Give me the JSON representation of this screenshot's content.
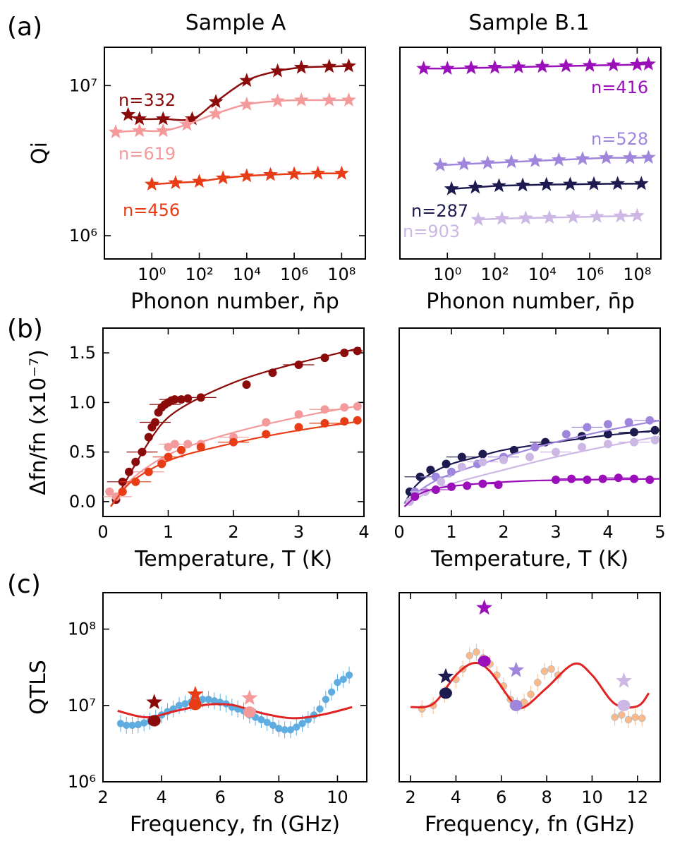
{
  "figure": {
    "column_titles": [
      "Sample A",
      "Sample B.1"
    ],
    "panel_letters": [
      "(a)",
      "(b)",
      "(c)"
    ]
  },
  "chart_data": [
    {
      "id": "a_left",
      "type": "line",
      "panel": "(a)",
      "column": "Sample A",
      "xlabel": "Phonon number, n̄p",
      "ylabel": "Qi",
      "xscale": "log",
      "yscale": "log",
      "xlim": [
        0.01,
        1000000000
      ],
      "ylim": [
        700000,
        18000000
      ],
      "xticks": [
        1,
        100,
        10000,
        1000000,
        100000000
      ],
      "xtick_labels": [
        "10⁰",
        "10²",
        "10⁴",
        "10⁶",
        "10⁸"
      ],
      "yticks": [
        1000000,
        10000000
      ],
      "ytick_labels": [
        "10⁶",
        "10⁷"
      ],
      "series": [
        {
          "name": "n=332",
          "color": "#8b0a0a",
          "marker": "star",
          "x": [
            0.1,
            0.3,
            3,
            50,
            500,
            10000,
            200000,
            2000000,
            30000000,
            200000000
          ],
          "y": [
            6400000,
            6000000,
            6000000,
            6000000,
            7800000,
            10800000,
            12500000,
            13200000,
            13400000,
            13500000
          ]
        },
        {
          "name": "n=619",
          "color": "#f49a9a",
          "marker": "star",
          "x": [
            0.03,
            0.3,
            3,
            30,
            500,
            10000,
            200000,
            2000000,
            30000000,
            200000000
          ],
          "y": [
            4900000,
            5000000,
            5000000,
            5500000,
            6500000,
            7500000,
            7900000,
            8000000,
            8000000,
            8000000
          ],
          "label": "n=619"
        },
        {
          "name": "n=456",
          "color": "#e83c17",
          "marker": "star",
          "x": [
            1,
            10,
            100,
            1000,
            10000,
            100000,
            1000000,
            10000000,
            100000000
          ],
          "y": [
            2200000,
            2250000,
            2300000,
            2420000,
            2500000,
            2550000,
            2580000,
            2600000,
            2600000
          ]
        }
      ],
      "fit": "smooth line through points"
    },
    {
      "id": "a_right",
      "type": "line",
      "panel": "(a)",
      "column": "Sample B.1",
      "xlabel": "Phonon number, n̄p",
      "ylabel": "",
      "xscale": "log",
      "yscale": "log",
      "xlim": [
        0.01,
        1000000000
      ],
      "ylim": [
        700000,
        18000000
      ],
      "xticks": [
        1,
        100,
        10000,
        1000000,
        100000000
      ],
      "xtick_labels": [
        "10⁰",
        "10²",
        "10⁴",
        "10⁶",
        "10⁸"
      ],
      "series": [
        {
          "name": "n=416",
          "color": "#9b0fbb",
          "marker": "star",
          "x": [
            0.1,
            1,
            10,
            100,
            1000,
            10000,
            100000,
            1000000,
            10000000,
            100000000,
            300000000
          ],
          "y": [
            13000000,
            13000000,
            13100000,
            13200000,
            13300000,
            13400000,
            13500000,
            13600000,
            13700000,
            13800000,
            13900000
          ]
        },
        {
          "name": "n=528",
          "color": "#9f86dc",
          "marker": "star",
          "x": [
            0.5,
            5,
            50,
            500,
            5000,
            50000,
            500000,
            5000000,
            50000000,
            300000000
          ],
          "y": [
            2950000,
            3000000,
            3050000,
            3100000,
            3150000,
            3200000,
            3250000,
            3300000,
            3300000,
            3320000
          ]
        },
        {
          "name": "n=287",
          "color": "#1c1a4f",
          "marker": "star",
          "x": [
            1.5,
            15,
            150,
            1500,
            15000,
            150000,
            1500000,
            15000000,
            150000000
          ],
          "y": [
            2050000,
            2100000,
            2150000,
            2170000,
            2190000,
            2200000,
            2210000,
            2220000,
            2220000
          ]
        },
        {
          "name": "n=903",
          "color": "#cdb7e4",
          "marker": "star",
          "x": [
            20,
            200,
            2000,
            20000,
            200000,
            2000000,
            20000000,
            100000000
          ],
          "y": [
            1280000,
            1300000,
            1310000,
            1320000,
            1330000,
            1340000,
            1350000,
            1360000
          ]
        }
      ],
      "fit": "smooth line through points"
    },
    {
      "id": "b_left",
      "type": "scatter",
      "panel": "(b)",
      "column": "Sample A",
      "xlabel": "Temperature, T (K)",
      "ylabel": "Δfn/fn (x10⁻⁷)",
      "xlim": [
        0,
        4
      ],
      "ylim": [
        -0.15,
        1.75
      ],
      "xticks": [
        0,
        1,
        2,
        3,
        4
      ],
      "xtick_labels": [
        "0",
        "1",
        "2",
        "3",
        "4"
      ],
      "yticks": [
        0,
        0.5,
        1.0,
        1.5
      ],
      "ytick_labels": [
        "0.0",
        "0.5",
        "1.0",
        "1.5"
      ],
      "series": [
        {
          "name": "n=332",
          "color": "#8b0a0a",
          "fit_x": [
            0.12,
            0.3,
            0.5,
            0.75,
            1.0,
            1.4,
            2.0,
            2.5,
            3.0,
            3.5,
            3.95
          ],
          "fit_y": [
            -0.05,
            0.15,
            0.38,
            0.65,
            0.85,
            1.02,
            1.2,
            1.31,
            1.4,
            1.48,
            1.55
          ],
          "points_x": [
            0.2,
            0.3,
            0.4,
            0.5,
            0.6,
            0.7,
            0.75,
            0.8,
            0.85,
            0.9,
            0.95,
            1.0,
            1.05,
            1.1,
            1.2,
            1.3,
            1.5,
            2.2,
            2.6,
            3.0,
            3.4,
            3.7,
            3.9
          ],
          "points_y": [
            0.02,
            0.2,
            0.3,
            0.4,
            0.5,
            0.65,
            0.75,
            0.8,
            0.9,
            0.95,
            0.98,
            1.0,
            1.02,
            1.03,
            1.03,
            1.04,
            1.05,
            1.18,
            1.3,
            1.38,
            1.45,
            1.5,
            1.52
          ]
        },
        {
          "name": "n=619",
          "color": "#f49a9a",
          "fit_x": [
            0.12,
            0.4,
            0.8,
            1.2,
            1.8,
            2.5,
            3.2,
            3.95
          ],
          "fit_y": [
            -0.05,
            0.2,
            0.4,
            0.53,
            0.66,
            0.78,
            0.88,
            0.97
          ],
          "points_x": [
            0.1,
            0.2,
            0.3,
            0.5,
            0.7,
            0.9,
            1.0,
            1.1,
            1.3,
            1.5,
            2.0,
            2.5,
            3.0,
            3.4,
            3.7,
            3.9
          ],
          "points_y": [
            0.1,
            0.05,
            0.1,
            0.2,
            0.3,
            0.4,
            0.55,
            0.58,
            0.58,
            0.58,
            0.65,
            0.8,
            0.88,
            0.93,
            0.95,
            0.96
          ]
        },
        {
          "name": "n=456",
          "color": "#e83c17",
          "fit_x": [
            0.12,
            0.4,
            0.8,
            1.2,
            1.8,
            2.5,
            3.2,
            3.95
          ],
          "fit_y": [
            -0.05,
            0.18,
            0.35,
            0.46,
            0.56,
            0.66,
            0.74,
            0.81
          ],
          "points_x": [
            0.3,
            0.5,
            0.7,
            0.9,
            1.0,
            1.2,
            1.5,
            2.0,
            2.5,
            3.0,
            3.4,
            3.7,
            3.9
          ],
          "points_y": [
            0.1,
            0.2,
            0.3,
            0.38,
            0.45,
            0.52,
            0.55,
            0.6,
            0.68,
            0.75,
            0.79,
            0.81,
            0.82
          ]
        }
      ]
    },
    {
      "id": "b_right",
      "type": "scatter",
      "panel": "(b)",
      "column": "Sample B.1",
      "xlabel": "Temperature, T (K)",
      "ylabel": "",
      "xlim": [
        0,
        5
      ],
      "ylim": [
        -0.15,
        1.75
      ],
      "xticks": [
        0,
        1,
        2,
        3,
        4,
        5
      ],
      "xtick_labels": [
        "0",
        "1",
        "2",
        "3",
        "4",
        "5"
      ],
      "series": [
        {
          "name": "n=287",
          "color": "#1c1a4f",
          "fit_x": [
            0.1,
            0.3,
            0.6,
            1.0,
            1.5,
            2.0,
            3.0,
            4.0,
            5.0
          ],
          "fit_y": [
            -0.02,
            0.15,
            0.28,
            0.38,
            0.45,
            0.52,
            0.6,
            0.67,
            0.72
          ],
          "points_x": [
            0.2,
            0.4,
            0.6,
            0.9,
            1.2,
            1.6,
            2.2,
            2.8,
            3.5,
            4.0,
            4.5,
            4.9
          ],
          "points_y": [
            0.1,
            0.25,
            0.32,
            0.38,
            0.45,
            0.48,
            0.52,
            0.6,
            0.66,
            0.68,
            0.7,
            0.72
          ]
        },
        {
          "name": "n=528",
          "color": "#9f86dc",
          "fit_x": [
            0.1,
            0.5,
            1.0,
            2.0,
            3.0,
            4.0,
            5.0
          ],
          "fit_y": [
            -0.02,
            0.15,
            0.28,
            0.45,
            0.6,
            0.72,
            0.82
          ],
          "points_x": [
            0.3,
            0.7,
            1.0,
            1.5,
            2.0,
            2.6,
            3.2,
            3.6,
            4.0,
            4.4,
            4.8
          ],
          "points_y": [
            0.1,
            0.25,
            0.3,
            0.38,
            0.45,
            0.55,
            0.68,
            0.75,
            0.78,
            0.8,
            0.82
          ]
        },
        {
          "name": "n=903",
          "color": "#cdb7e4",
          "fit_x": [
            0.1,
            0.5,
            1.0,
            2.0,
            3.0,
            4.0,
            5.0
          ],
          "fit_y": [
            -0.05,
            0.08,
            0.18,
            0.32,
            0.45,
            0.56,
            0.66
          ],
          "points_x": [
            0.2,
            0.5,
            0.8,
            1.2,
            1.6,
            2.0,
            2.5,
            3.0,
            3.5,
            4.0,
            4.5,
            4.9
          ],
          "points_y": [
            0.0,
            0.1,
            0.2,
            0.35,
            0.4,
            0.42,
            0.45,
            0.5,
            0.55,
            0.58,
            0.6,
            0.62
          ]
        },
        {
          "name": "n=416",
          "color": "#9b0fbb",
          "fit_x": [
            0.1,
            0.4,
            0.8,
            1.5,
            2.5,
            3.5,
            5.0
          ],
          "fit_y": [
            -0.05,
            0.08,
            0.14,
            0.18,
            0.21,
            0.22,
            0.23
          ],
          "points_x": [
            0.3,
            0.7,
            1.0,
            1.3,
            1.6,
            1.9,
            3.0,
            3.3,
            3.6,
            3.9,
            4.2,
            4.5,
            4.8
          ],
          "points_y": [
            0.05,
            0.12,
            0.15,
            0.16,
            0.18,
            0.17,
            0.22,
            0.23,
            0.22,
            0.23,
            0.24,
            0.23,
            0.22
          ]
        }
      ]
    },
    {
      "id": "c_left",
      "type": "scatter",
      "panel": "(c)",
      "column": "Sample A",
      "xlabel": "Frequency, fn (GHz)",
      "ylabel": "QTLS",
      "yscale": "log",
      "xlim": [
        2,
        11
      ],
      "ylim": [
        1000000,
        300000000
      ],
      "xticks": [
        2,
        4,
        6,
        8,
        10
      ],
      "xtick_labels": [
        "2",
        "4",
        "6",
        "8",
        "10"
      ],
      "yticks": [
        1000000,
        10000000,
        100000000
      ],
      "ytick_labels": [
        "10⁶",
        "10⁷",
        "10⁸"
      ],
      "scatter_color": "#5dade2",
      "scatter_x": [
        2.6,
        2.8,
        3.0,
        3.2,
        3.4,
        3.6,
        3.8,
        4.0,
        4.2,
        4.4,
        4.6,
        4.8,
        5.0,
        5.2,
        5.4,
        5.6,
        5.8,
        6.0,
        6.2,
        6.4,
        6.6,
        6.8,
        7.0,
        7.2,
        7.4,
        7.6,
        7.8,
        8.0,
        8.2,
        8.4,
        8.6,
        8.8,
        9.0,
        9.2,
        9.4,
        9.6,
        9.8,
        10.0,
        10.2,
        10.4
      ],
      "scatter_y": [
        5800000,
        5500000,
        5500000,
        5600000,
        5900000,
        6200000,
        6800000,
        7500000,
        8300000,
        9000000,
        10000000,
        10500000,
        11000000,
        11500000,
        12000000,
        12000000,
        11500000,
        11000000,
        10500000,
        9500000,
        9000000,
        8500000,
        7500000,
        7000000,
        6500000,
        6000000,
        5500000,
        5000000,
        4800000,
        4800000,
        5200000,
        5800000,
        6500000,
        7500000,
        9000000,
        12000000,
        15000000,
        20000000,
        22000000,
        25000000
      ],
      "fit_color": "#e02424",
      "fit_x": [
        2.5,
        3.5,
        4.5,
        5.5,
        6.0,
        6.5,
        7.5,
        8.5,
        9.5,
        10.5
      ],
      "fit_y": [
        8500000,
        7000000,
        8500000,
        10200000,
        10400000,
        10000000,
        7800000,
        6800000,
        7600000,
        9500000
      ],
      "circles": [
        {
          "x": 3.75,
          "y": 6300000,
          "color": "#8b0a0a"
        },
        {
          "x": 5.15,
          "y": 10300000,
          "color": "#e83c17"
        },
        {
          "x": 7.0,
          "y": 8200000,
          "color": "#f49a9a"
        }
      ],
      "stars": [
        {
          "x": 3.75,
          "y": 11000000,
          "color": "#8b0a0a"
        },
        {
          "x": 5.15,
          "y": 14000000,
          "color": "#e83c17"
        },
        {
          "x": 7.0,
          "y": 12500000,
          "color": "#f49a9a"
        }
      ]
    },
    {
      "id": "c_right",
      "type": "scatter",
      "panel": "(c)",
      "column": "Sample B.1",
      "xlabel": "Frequency, fn (GHz)",
      "ylabel": "",
      "yscale": "log",
      "xlim": [
        1.5,
        13
      ],
      "ylim": [
        1000000,
        300000000
      ],
      "xticks": [
        2,
        4,
        6,
        8,
        10,
        12
      ],
      "xtick_labels": [
        "2",
        "4",
        "6",
        "8",
        "10",
        "12"
      ],
      "scatter_color": "#f9b98a",
      "scatter_x": [
        2.5,
        3.0,
        3.5,
        4.0,
        4.3,
        4.6,
        4.9,
        5.2,
        5.5,
        5.8,
        6.1,
        6.4,
        6.7,
        7.0,
        7.3,
        7.6,
        7.9,
        8.2,
        8.5,
        11.0,
        11.3,
        11.6,
        11.9,
        12.2
      ],
      "scatter_y": [
        9000000,
        10000000,
        14000000,
        22000000,
        30000000,
        45000000,
        50000000,
        42000000,
        35000000,
        25000000,
        18000000,
        12000000,
        10000000,
        11000000,
        14000000,
        20000000,
        28000000,
        30000000,
        25000000,
        7000000,
        7500000,
        6500000,
        7000000,
        6800000
      ],
      "fit_color": "#e02424",
      "fit_x": [
        2.0,
        3.0,
        4.0,
        4.8,
        5.5,
        6.5,
        7.0,
        8.0,
        9.2,
        10.0,
        11.0,
        12.0,
        12.5
      ],
      "fit_y": [
        9500000,
        10500000,
        25000000,
        36000000,
        28000000,
        11000000,
        9500000,
        17000000,
        35000000,
        25000000,
        10500000,
        9800000,
        14500000
      ],
      "circles": [
        {
          "x": 3.55,
          "y": 14500000,
          "color": "#1c1a4f"
        },
        {
          "x": 5.25,
          "y": 38000000,
          "color": "#9b0fbb"
        },
        {
          "x": 6.65,
          "y": 10000000,
          "color": "#9f86dc"
        },
        {
          "x": 11.4,
          "y": 10000000,
          "color": "#cdb7e4"
        }
      ],
      "stars": [
        {
          "x": 3.55,
          "y": 24000000,
          "color": "#1c1a4f"
        },
        {
          "x": 5.25,
          "y": 190000000,
          "color": "#9b0fbb"
        },
        {
          "x": 6.65,
          "y": 29000000,
          "color": "#9f86dc"
        },
        {
          "x": 11.4,
          "y": 21000000,
          "color": "#cdb7e4"
        }
      ]
    }
  ]
}
